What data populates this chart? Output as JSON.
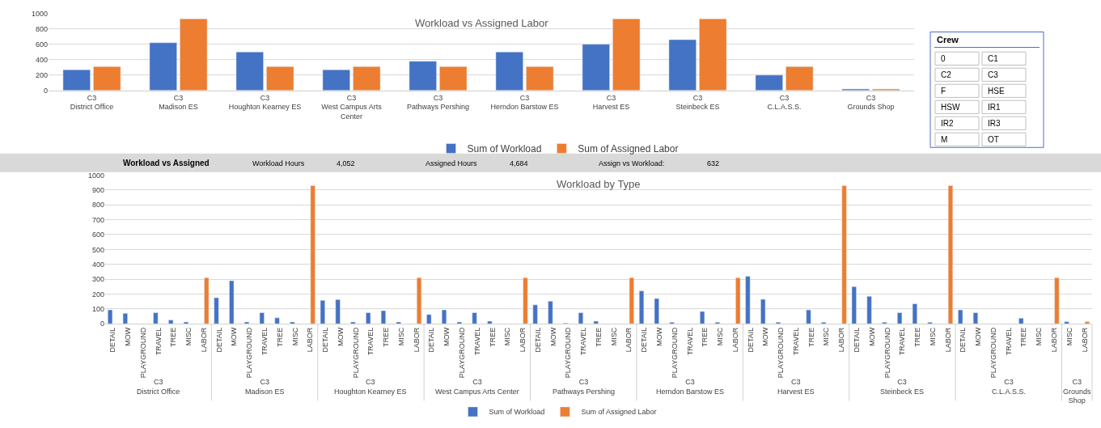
{
  "chart_data": [
    {
      "type": "bar",
      "title": "Workload vs Assigned Labor",
      "categories": [
        "C3\nDistrict Office",
        "C3\nMadison ES",
        "C3\nHoughton Kearney ES",
        "C3\nWest Campus Arts\nCenter",
        "C3\nPathways Pershing",
        "C3\nHerndon Barstow ES",
        "C3\nHarvest ES",
        "C3\nSteinbeck ES",
        "C3\nC.L.A.S.S.",
        "C3\nGrounds Shop"
      ],
      "series": [
        {
          "name": "Sum of Workload",
          "color": "#4472c4",
          "values": [
            270,
            620,
            500,
            270,
            380,
            500,
            600,
            660,
            200,
            20
          ]
        },
        {
          "name": "Sum of Assigned Labor",
          "color": "#ed7d31",
          "values": [
            310,
            930,
            310,
            310,
            310,
            310,
            930,
            930,
            310,
            20
          ]
        }
      ],
      "ylim": [
        0,
        1000
      ],
      "yticks": [
        0,
        200,
        400,
        600,
        800,
        1000
      ],
      "grid": "y",
      "legend": "bottom"
    },
    {
      "type": "other",
      "title": "Workload vs Assigned",
      "annotations": [
        "Workload Hours",
        "4,052",
        "Assigned Hours",
        "4,684",
        "Assign vs Workload:",
        "632"
      ]
    },
    {
      "type": "bar",
      "title": "Workload by Type",
      "categories": [
        "DETAIL",
        "MOW",
        "PLAYGROUND",
        "TRAVEL",
        "TREE",
        "MISC",
        "LABOR",
        "DETAIL",
        "MOW",
        "PLAYGROUND",
        "TRAVEL",
        "TREE",
        "MISC",
        "LABOR",
        "DETAIL",
        "MOW",
        "PLAYGROUND",
        "TRAVEL",
        "TREE",
        "MISC",
        "LABOR",
        "DETAIL",
        "MOW",
        "PLAYGROUND",
        "TRAVEL",
        "TREE",
        "MISC",
        "LABOR",
        "DETAIL",
        "MOW",
        "PLAYGROUND",
        "TRAVEL",
        "TREE",
        "MISC",
        "LABOR",
        "DETAIL",
        "MOW",
        "PLAYGROUND",
        "TRAVEL",
        "TREE",
        "MISC",
        "LABOR",
        "DETAIL",
        "MOW",
        "PLAYGROUND",
        "TRAVEL",
        "TREE",
        "MISC",
        "LABOR",
        "DETAIL",
        "MOW",
        "PLAYGROUND",
        "TRAVEL",
        "TREE",
        "MISC",
        "LABOR",
        "DETAIL",
        "MOW",
        "PLAYGROUND",
        "TRAVEL",
        "TREE",
        "MISC",
        "LABOR",
        "MISC",
        "LABOR"
      ],
      "annotations": [
        "C3\nDistrict Office",
        "C3\nMadison ES",
        "C3\nHoughton Kearney ES",
        "C3\nWest Campus Arts Center",
        "C3\nPathways Pershing",
        "C3\nHerndon Barstow ES",
        "C3\nHarvest ES",
        "C3\nSteinbeck ES",
        "C3\nC.L.A.S.S.",
        "C3\nGrounds\nShop"
      ],
      "series": [
        {
          "name": "Sum of Workload",
          "color": "#4472c4",
          "values": [
            93,
            70,
            null,
            75,
            25,
            12,
            null,
            175,
            290,
            12,
            75,
            40,
            12,
            null,
            158,
            163,
            12,
            75,
            88,
            12,
            null,
            62,
            93,
            12,
            75,
            18,
            null,
            null,
            127,
            152,
            5,
            75,
            18,
            null,
            null,
            222,
            170,
            10,
            null,
            83,
            10,
            null,
            320,
            165,
            10,
            null,
            93,
            10,
            null,
            250,
            185,
            10,
            75,
            135,
            10,
            null,
            93,
            75,
            null,
            null,
            38,
            null,
            null,
            15,
            null
          ]
        },
        {
          "name": "Sum of Assigned Labor",
          "color": "#ed7d31",
          "values": [
            null,
            null,
            null,
            null,
            null,
            null,
            310,
            null,
            null,
            null,
            null,
            null,
            null,
            930,
            null,
            null,
            null,
            null,
            null,
            null,
            310,
            null,
            null,
            null,
            null,
            null,
            null,
            310,
            null,
            null,
            null,
            null,
            null,
            null,
            310,
            null,
            null,
            null,
            null,
            null,
            null,
            310,
            null,
            null,
            null,
            null,
            null,
            null,
            930,
            null,
            null,
            null,
            null,
            null,
            null,
            930,
            null,
            null,
            null,
            null,
            null,
            null,
            310,
            null,
            15
          ]
        }
      ],
      "ylim": [
        0,
        1000
      ],
      "yticks": [
        0,
        100,
        200,
        300,
        400,
        500,
        600,
        700,
        800,
        900,
        1000
      ],
      "grid": "y",
      "legend": "bottom"
    },
    {
      "type": "other",
      "title": "Crew",
      "annotations": [
        "0",
        "C1",
        "C2",
        "C3",
        "F",
        "HSE",
        "HSW",
        "IR1",
        "IR2",
        "IR3",
        "M",
        "OT"
      ]
    }
  ]
}
